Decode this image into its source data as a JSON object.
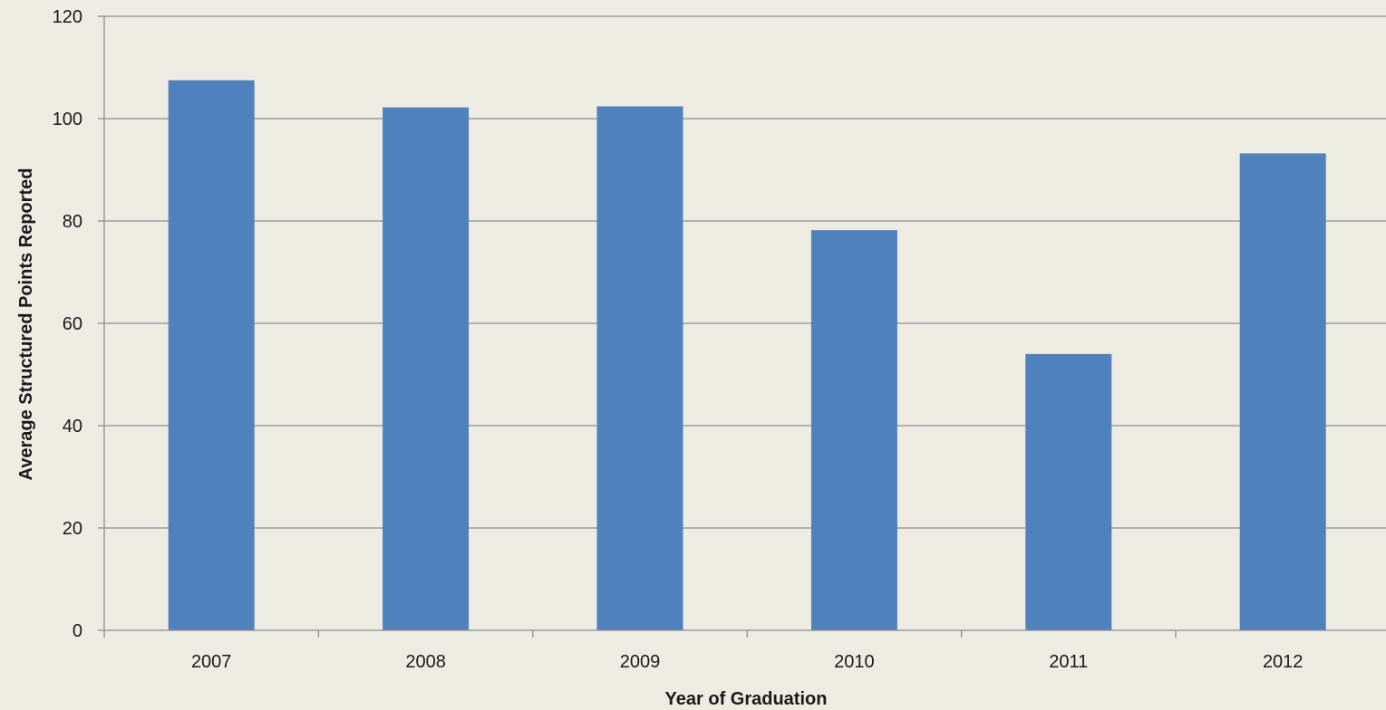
{
  "chart_data": {
    "type": "bar",
    "categories": [
      "2007",
      "2008",
      "2009",
      "2010",
      "2011",
      "2012"
    ],
    "values": [
      107.5,
      102.2,
      102.4,
      78.2,
      54.0,
      93.2
    ],
    "title": "",
    "xlabel": "Year of Graduation",
    "ylabel": "Average Structured Points Reported",
    "ylim": [
      0,
      120
    ],
    "yticks": [
      0,
      20,
      40,
      60,
      80,
      100,
      120
    ],
    "grid": true,
    "legend": "none",
    "colors": {
      "bar": "#4f81bd",
      "background": "#eeebe2",
      "gridline": "#8c8c8c",
      "axis": "#8c8c8c",
      "text": "#1a1a1a"
    }
  }
}
